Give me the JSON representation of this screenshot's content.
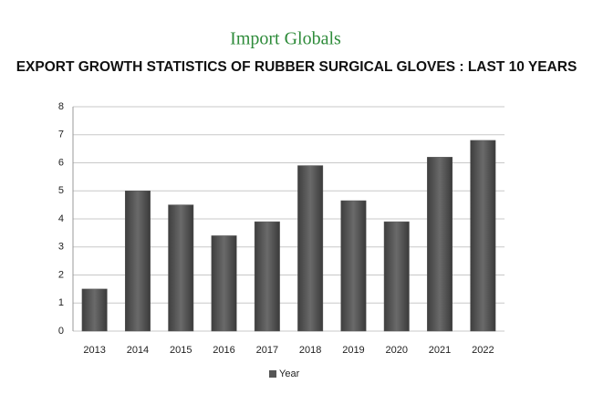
{
  "logo": "Import Globals",
  "chart_data": {
    "type": "bar",
    "title": "EXPORT GROWTH STATISTICS OF RUBBER SURGICAL GLOVES : LAST 10 YEARS",
    "categories": [
      "2013",
      "2014",
      "2015",
      "2016",
      "2017",
      "2018",
      "2019",
      "2020",
      "2021",
      "2022"
    ],
    "series": [
      {
        "name": "Year",
        "color": "#555555",
        "values": [
          1.5,
          5.0,
          4.5,
          3.4,
          3.9,
          5.9,
          4.65,
          3.9,
          6.2,
          6.8
        ]
      }
    ],
    "ylim": [
      0,
      8
    ],
    "yticks": [
      0,
      1,
      2,
      3,
      4,
      5,
      6,
      7,
      8
    ],
    "grid": true,
    "legend": "bottom"
  }
}
